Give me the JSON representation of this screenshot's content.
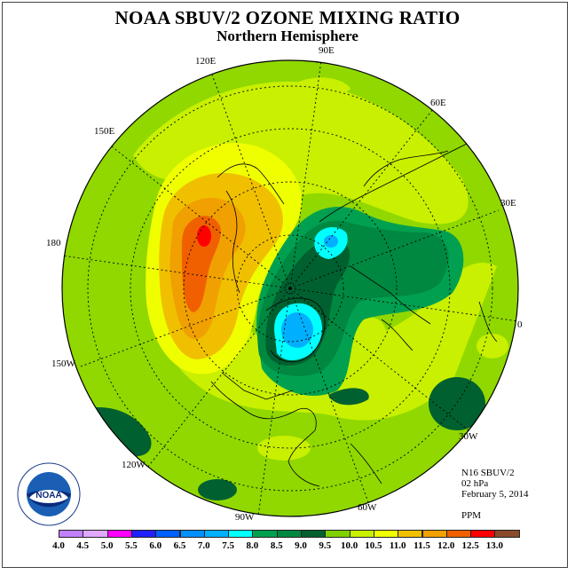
{
  "title": "NOAA SBUV/2 OZONE MIXING RATIO",
  "subtitle": "Northern Hemisphere",
  "longitude_labels": {
    "l90e": "90E",
    "l60e": "60E",
    "l30e": "30E",
    "l0": "0",
    "l30w": "30W",
    "l60w": "60W",
    "l90w": "90W",
    "l120w": "120W",
    "l150w": "150W",
    "l180": "180",
    "l150e": "150E",
    "l120e": "120E"
  },
  "info": {
    "instrument": "N16 SBUV/2",
    "level": "02 hPa",
    "date": "February 5, 2014",
    "units": "PPM"
  },
  "colorbar": {
    "ticks": [
      "4.0",
      "4.5",
      "5.0",
      "5.5",
      "6.0",
      "6.5",
      "7.0",
      "7.5",
      "8.0",
      "8.5",
      "9.0",
      "9.5",
      "10.0",
      "10.5",
      "11.0",
      "11.5",
      "12.0",
      "12.5",
      "13.0"
    ],
    "colors": [
      "#c080ff",
      "#e0a8ff",
      "#ff00ff",
      "#2020ff",
      "#0060ff",
      "#0090ff",
      "#00b0ff",
      "#00ffff",
      "#00a050",
      "#008840",
      "#006030",
      "#80d000",
      "#c8f000",
      "#f0ff00",
      "#f0c000",
      "#f0a000",
      "#f06000",
      "#ff0000",
      "#8b4a2b"
    ]
  },
  "logo_text": "NOAA",
  "colors": {
    "background_field": "#90d800",
    "map_lines": "#000000"
  }
}
